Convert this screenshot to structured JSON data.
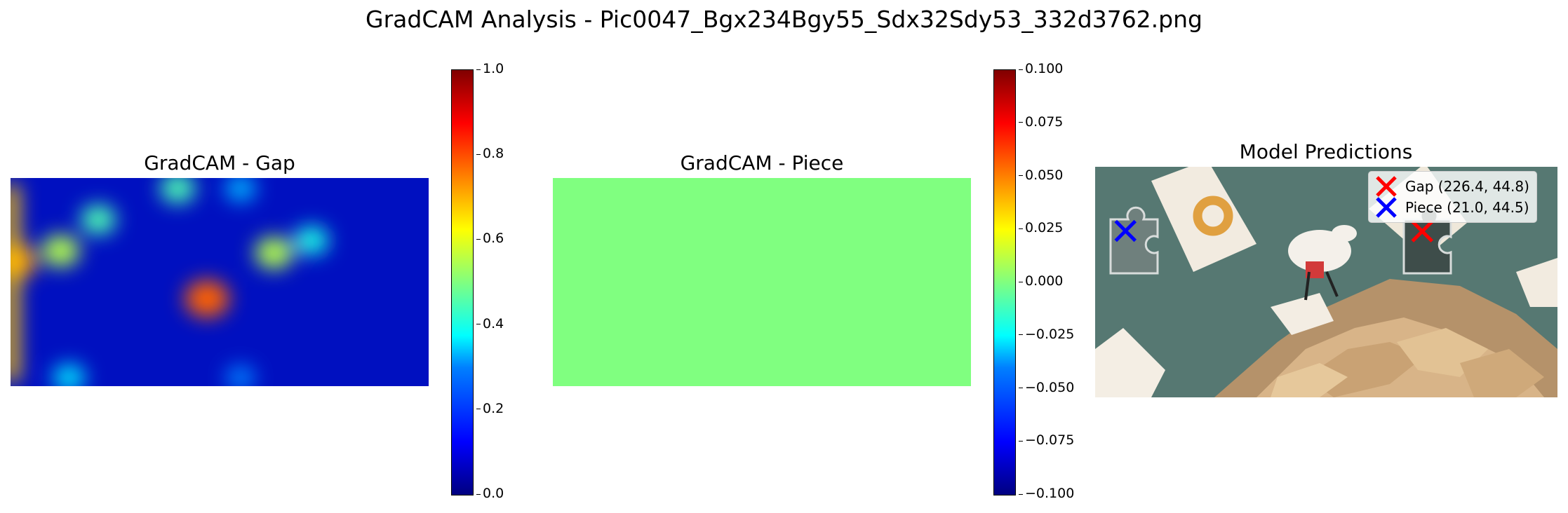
{
  "suptitle": "GradCAM Analysis - Pic0047_Bgx234Bgy55_Sdx32Sdy53_332d3762.png",
  "colors": {
    "gap_marker": "#ff0000",
    "piece_marker": "#0000ff",
    "uniform_piece_map": "#80ff80",
    "colormap": "jet"
  },
  "chart_data": [
    {
      "type": "heatmap",
      "title": "GradCAM - Gap",
      "colorbar": {
        "range": [
          0.0,
          1.0
        ],
        "ticks": [
          "0.0",
          "0.2",
          "0.4",
          "0.6",
          "0.8",
          "1.0"
        ]
      },
      "hotspots": [
        {
          "x": 0.01,
          "y": 0.4,
          "v": 0.72
        },
        {
          "x": 0.12,
          "y": 0.35,
          "v": 0.55
        },
        {
          "x": 0.21,
          "y": 0.2,
          "v": 0.45
        },
        {
          "x": 0.47,
          "y": 0.58,
          "v": 0.78
        },
        {
          "x": 0.63,
          "y": 0.36,
          "v": 0.55
        },
        {
          "x": 0.72,
          "y": 0.3,
          "v": 0.4
        },
        {
          "x": 0.4,
          "y": 0.05,
          "v": 0.45
        },
        {
          "x": 0.55,
          "y": 0.05,
          "v": 0.3
        },
        {
          "x": 0.14,
          "y": 0.96,
          "v": 0.35
        },
        {
          "x": 0.55,
          "y": 0.96,
          "v": 0.25
        }
      ]
    },
    {
      "type": "heatmap",
      "title": "GradCAM - Piece",
      "uniform_value": 0.0,
      "colorbar": {
        "range": [
          -0.1,
          0.1
        ],
        "ticks": [
          "−0.100",
          "−0.075",
          "−0.050",
          "−0.025",
          "0.000",
          "0.025",
          "0.050",
          "0.075",
          "0.100"
        ]
      }
    },
    {
      "type": "scatter",
      "title": "Model Predictions",
      "image_size": [
        320,
        160
      ],
      "points": [
        {
          "label": "Gap (226.4, 44.8)",
          "x": 226.4,
          "y": 44.8,
          "color": "#ff0000"
        },
        {
          "label": "Piece (21.0, 44.5)",
          "x": 21.0,
          "y": 44.5,
          "color": "#0000ff"
        }
      ]
    }
  ]
}
